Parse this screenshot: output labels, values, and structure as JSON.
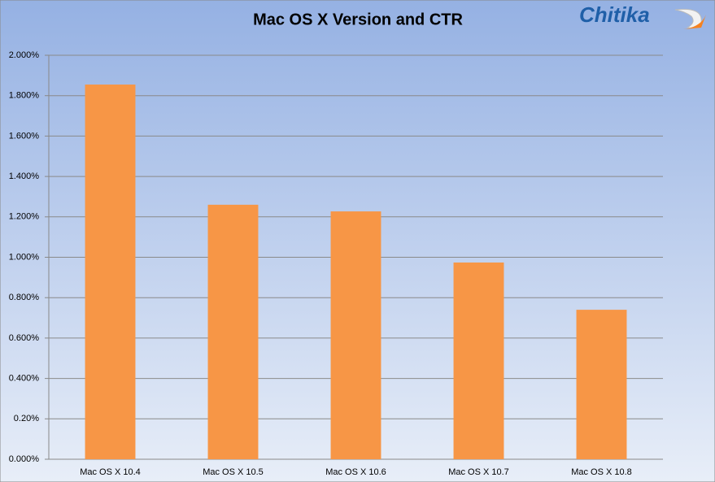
{
  "chart_data": {
    "type": "bar",
    "title": "Mac OS X Version and CTR",
    "logo": "Chitika",
    "categories": [
      "Mac OS X 10.4",
      "Mac OS X 10.5",
      "Mac OS X 10.6",
      "Mac OS X 10.7",
      "Mac OS X 10.8"
    ],
    "values": [
      1.855,
      1.26,
      1.227,
      0.974,
      0.74
    ],
    "color": "#f79646",
    "ylim": [
      0,
      2
    ],
    "yticks": [
      {
        "value": 0,
        "label": "0.000%"
      },
      {
        "value": 0.2,
        "label": "0.20%"
      },
      {
        "value": 0.4,
        "label": "0.400%"
      },
      {
        "value": 0.6,
        "label": "0.600%"
      },
      {
        "value": 0.8,
        "label": "0.800%"
      },
      {
        "value": 1,
        "label": "1.000%"
      },
      {
        "value": 1.2,
        "label": "1.200%"
      },
      {
        "value": 1.4,
        "label": "1.400%"
      },
      {
        "value": 1.6,
        "label": "1.600%"
      },
      {
        "value": 1.8,
        "label": "1.800%"
      },
      {
        "value": 2,
        "label": "2.000%"
      }
    ],
    "grid": true
  }
}
